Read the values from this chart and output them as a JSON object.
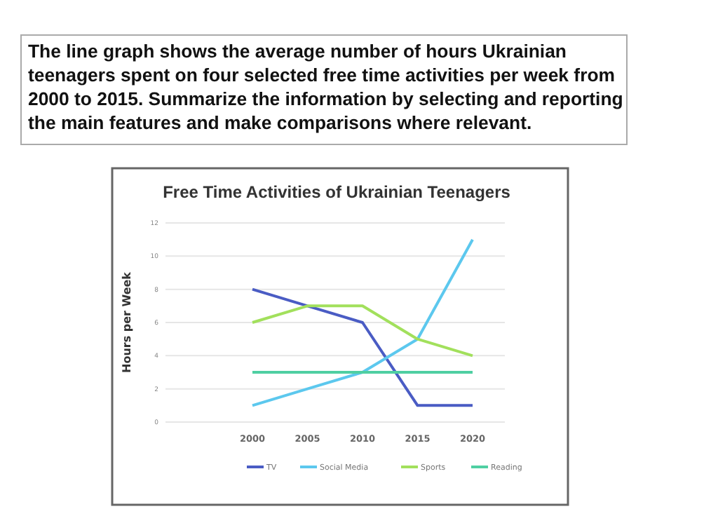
{
  "chart_data": {
    "type": "line",
    "title": "Free Time Activities of Ukrainian Teenagers",
    "ylabel": "Hours per Week",
    "annotations": [
      "The line graph shows the average number of hours Ukrainian teenagers spent on four selected free time activities per week from 2000 to 2015. Summarize the information by selecting and reporting the main features and make comparisons where relevant."
    ],
    "categories": [
      "2000",
      "2005",
      "2010",
      "2015",
      "2020"
    ],
    "series": [
      {
        "name": "TV",
        "color": "#4a5cc4",
        "values": [
          8,
          7,
          6,
          1,
          1
        ]
      },
      {
        "name": "Social Media",
        "color": "#5cc8ee",
        "values": [
          1,
          2,
          3,
          5,
          11
        ]
      },
      {
        "name": "Sports",
        "color": "#a2e05c",
        "values": [
          6,
          7,
          7,
          5,
          4
        ]
      },
      {
        "name": "Reading",
        "color": "#4fcfa2",
        "values": [
          3,
          3,
          3,
          3,
          3
        ]
      }
    ],
    "ylim": [
      0,
      12
    ],
    "yticks": [
      0,
      2,
      4,
      6,
      8,
      10,
      12
    ],
    "grid": "y",
    "legend": "bottom",
    "marker": "none",
    "line_style": "solid"
  }
}
